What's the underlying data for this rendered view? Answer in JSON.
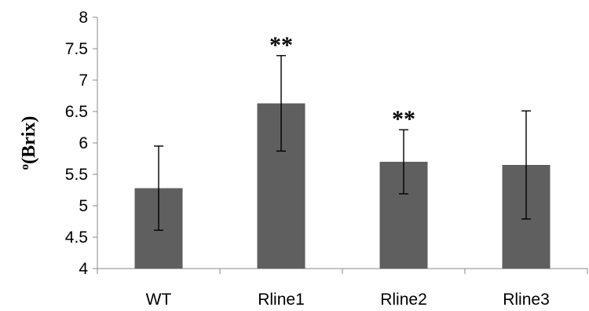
{
  "chart_data": {
    "type": "bar",
    "categories": [
      "WT",
      "Rline1",
      "Rline2",
      "Rline3"
    ],
    "values": [
      5.28,
      6.63,
      5.7,
      5.65
    ],
    "error": [
      0.67,
      0.76,
      0.51,
      0.86
    ],
    "annotations": [
      "",
      "**",
      "**",
      ""
    ],
    "ylabel": "o(Brix)",
    "ylim": [
      4,
      8
    ],
    "yticks": [
      "4",
      "4.5",
      "5",
      "5.5",
      "6",
      "6.5",
      "7",
      "7.5",
      "8"
    ],
    "grid": false,
    "bar_color": "#5f5f5f"
  }
}
